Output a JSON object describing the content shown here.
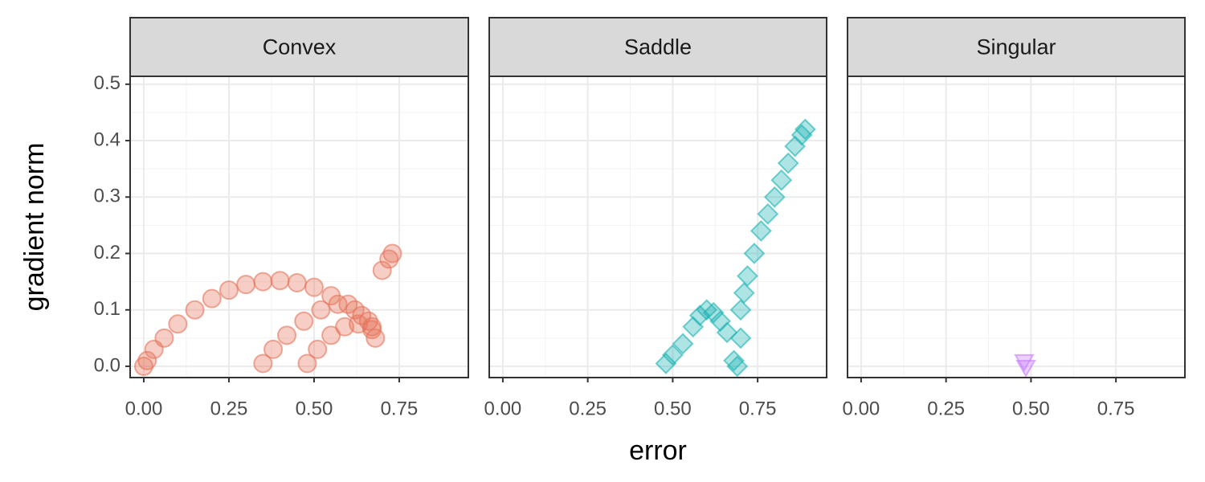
{
  "chart_data": [
    {
      "type": "scatter",
      "title": "Convex",
      "ylabel": "gradient norm",
      "marker": "circle",
      "color": "#E6735A",
      "x": [
        0.0,
        0.01,
        0.03,
        0.06,
        0.1,
        0.15,
        0.2,
        0.25,
        0.3,
        0.35,
        0.4,
        0.45,
        0.5,
        0.55,
        0.6,
        0.64,
        0.67,
        0.35,
        0.38,
        0.42,
        0.47,
        0.52,
        0.57,
        0.62,
        0.66,
        0.68,
        0.48,
        0.51,
        0.55,
        0.59,
        0.63,
        0.67,
        0.7,
        0.72,
        0.73
      ],
      "y": [
        0.0,
        0.01,
        0.03,
        0.05,
        0.075,
        0.1,
        0.12,
        0.135,
        0.145,
        0.15,
        0.152,
        0.148,
        0.14,
        0.125,
        0.11,
        0.09,
        0.07,
        0.005,
        0.03,
        0.055,
        0.08,
        0.1,
        0.11,
        0.1,
        0.08,
        0.05,
        0.005,
        0.03,
        0.055,
        0.07,
        0.075,
        0.065,
        0.17,
        0.19,
        0.2
      ],
      "xlim": [
        -0.04,
        0.953
      ],
      "ylim": [
        -0.02,
        0.514
      ],
      "xticks": [
        {
          "value": 0,
          "label": "0.00"
        },
        0.25,
        {
          "value": 0.5,
          "label": "0.50"
        },
        0.75
      ],
      "yticks": [
        {
          "value": 0,
          "label": "0.0"
        },
        0.1,
        0.2,
        0.3,
        0.4,
        0.5
      ]
    },
    {
      "type": "scatter",
      "title": "Saddle",
      "xlabel": "error",
      "marker": "diamond",
      "color": "#19B3B3",
      "x": [
        0.48,
        0.5,
        0.53,
        0.56,
        0.58,
        0.6,
        0.62,
        0.64,
        0.66,
        0.68,
        0.69,
        0.7,
        0.7,
        0.71,
        0.72,
        0.74,
        0.76,
        0.78,
        0.8,
        0.82,
        0.84,
        0.86,
        0.88,
        0.89
      ],
      "y": [
        0.005,
        0.02,
        0.04,
        0.07,
        0.09,
        0.1,
        0.095,
        0.08,
        0.06,
        0.01,
        0.0,
        0.05,
        0.1,
        0.13,
        0.16,
        0.2,
        0.24,
        0.27,
        0.3,
        0.33,
        0.36,
        0.39,
        0.41,
        0.42
      ],
      "xlim": [
        -0.04,
        0.953
      ],
      "ylim": [
        -0.02,
        0.514
      ],
      "xticks": [
        {
          "value": 0,
          "label": "0.00"
        },
        0.25,
        {
          "value": 0.5,
          "label": "0.50"
        },
        0.75
      ]
    },
    {
      "type": "scatter",
      "title": "Singular",
      "marker": "triangle-down",
      "color": "#C77CFF",
      "x": [
        0.48,
        0.485
      ],
      "y": [
        0.01,
        0.0
      ],
      "xlim": [
        -0.04,
        0.953
      ],
      "ylim": [
        -0.02,
        0.514
      ],
      "xticks": [
        {
          "value": 0,
          "label": "0.00"
        },
        0.25,
        {
          "value": 0.5,
          "label": "0.50"
        },
        0.75
      ]
    }
  ]
}
